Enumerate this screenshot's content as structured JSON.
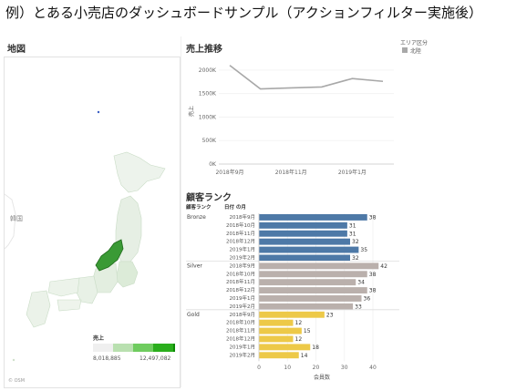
{
  "page": {
    "title": "例）とある小売店のダッシュボードサンプル（アクションフィルター実施後）"
  },
  "map": {
    "title": "地図",
    "country_label": "韓国",
    "copyright": "© OSM",
    "legend": {
      "title": "売上",
      "min_label": "8,018,885",
      "max_label": "12,497,082",
      "colors": [
        "#efefef",
        "#b9e0b0",
        "#6fcc5f",
        "#2aae1c",
        "#0c8a05"
      ]
    },
    "highlight_color": "#3a9a35"
  },
  "sales_trend": {
    "title": "売上推移",
    "legend_title": "エリア区分",
    "legend_item": "北陸",
    "line_color": "#a8a8a8",
    "chart_data": {
      "type": "line",
      "ylabel": "売上",
      "ylim": [
        0,
        2250000
      ],
      "y_ticks": [
        0,
        500000,
        1000000,
        1500000,
        2000000
      ],
      "y_tick_labels": [
        "0K",
        "500K",
        "1000K",
        "1500K",
        "2000K"
      ],
      "x": [
        "2018年9月",
        "2018年10月",
        "2018年11月",
        "2018年12月",
        "2019年1月",
        "2019年2月"
      ],
      "x_tick_labels": [
        "2018年9月",
        "2018年11月",
        "2019年1月"
      ],
      "series": [
        {
          "name": "北陸",
          "values": [
            2100000,
            1600000,
            1620000,
            1640000,
            1820000,
            1760000
          ]
        }
      ]
    }
  },
  "customer_rank": {
    "title": "顧客ランク",
    "header_rank": "顧客ランク",
    "header_date": "日付 の月",
    "axis_label": "会員数",
    "chart_data": {
      "type": "bar",
      "orientation": "horizontal",
      "xlim": [
        0,
        48
      ],
      "x_ticks": [
        0,
        10,
        20,
        30,
        40
      ],
      "xlabel": "会員数",
      "groups": [
        {
          "name": "Bronze",
          "color": "#4e79a7",
          "categories": [
            "2018年9月",
            "2018年10月",
            "2018年11月",
            "2018年12月",
            "2019年1月",
            "2019年2月"
          ],
          "values": [
            38,
            31,
            31,
            32,
            35,
            32
          ]
        },
        {
          "name": "Silver",
          "color": "#bab0ac",
          "categories": [
            "2018年9月",
            "2018年10月",
            "2018年11月",
            "2018年12月",
            "2019年1月",
            "2019年2月"
          ],
          "values": [
            42,
            38,
            34,
            38,
            36,
            33
          ]
        },
        {
          "name": "Gold",
          "color": "#edc948",
          "categories": [
            "2018年9月",
            "2018年10月",
            "2018年11月",
            "2018年12月",
            "2019年1月",
            "2019年2月"
          ],
          "values": [
            23,
            12,
            15,
            12,
            18,
            14
          ]
        }
      ]
    }
  }
}
